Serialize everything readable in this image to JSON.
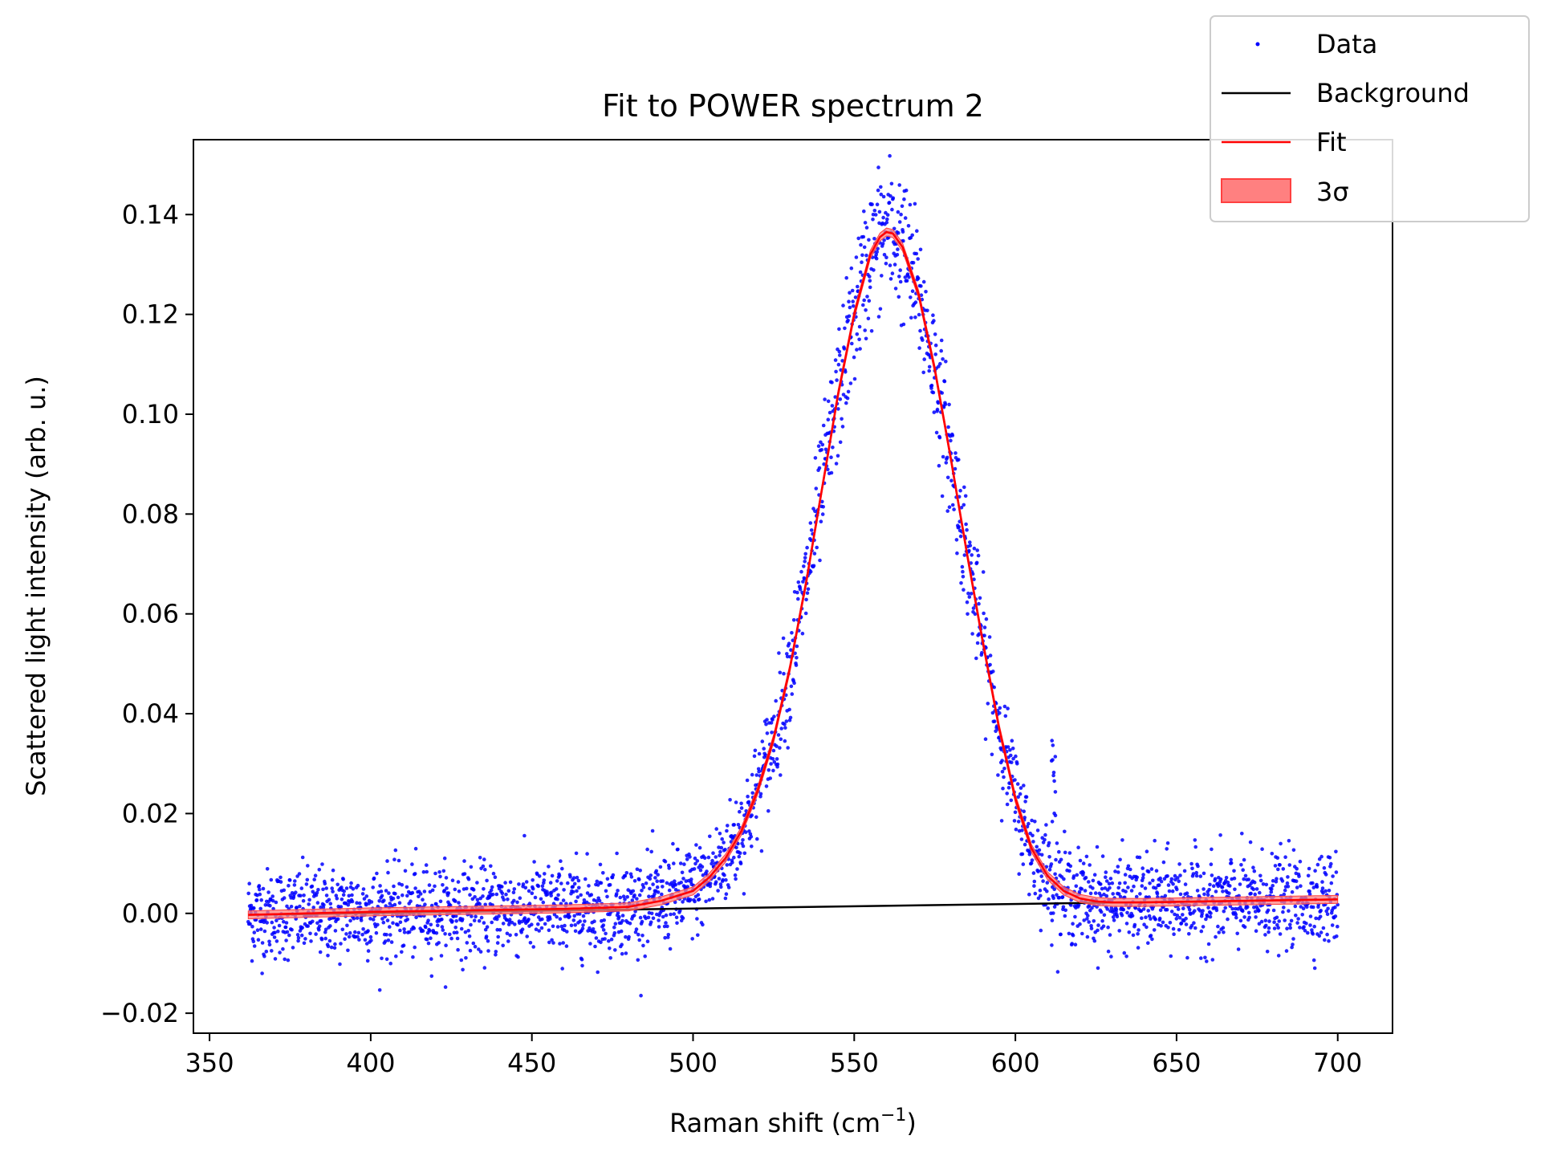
{
  "chart_data": {
    "type": "scatter",
    "title": "Fit to POWER spectrum 2",
    "xlabel": "Raman shift (cm",
    "xlabel_sup": "−1",
    "xlabel_close": ")",
    "ylabel": "Scattered light intensity (arb. u.)",
    "xlim": [
      345,
      717
    ],
    "ylim": [
      -0.024,
      0.155
    ],
    "xticks": [
      350,
      400,
      450,
      500,
      550,
      600,
      650,
      700
    ],
    "xtick_labels": [
      "350",
      "400",
      "450",
      "500",
      "550",
      "600",
      "650",
      "700"
    ],
    "yticks": [
      -0.02,
      0.0,
      0.02,
      0.04,
      0.06,
      0.08,
      0.1,
      0.12,
      0.14
    ],
    "ytick_labels": [
      "−0.02",
      "0.00",
      "0.02",
      "0.04",
      "0.06",
      "0.08",
      "0.10",
      "0.12",
      "0.14"
    ],
    "legend_position": "top-right",
    "legend": [
      {
        "label": "Data",
        "marker": "dot",
        "color": "#0000ff"
      },
      {
        "label": "Background",
        "marker": "line",
        "color": "#000000"
      },
      {
        "label": "Fit",
        "marker": "line",
        "color": "#ff0000"
      },
      {
        "label": "3σ",
        "marker": "patch",
        "color": "#ff0000"
      }
    ],
    "colors": {
      "data": "#0000ff",
      "background": "#000000",
      "fit": "#ff0000",
      "band": "#ff8080"
    },
    "data_x_range": [
      362,
      700
    ],
    "background_line": {
      "x": [
        362,
        700
      ],
      "y": [
        -0.0003,
        0.0028
      ]
    },
    "fit_curve": {
      "x": [
        362,
        380,
        400,
        420,
        440,
        460,
        480,
        490,
        500,
        505,
        510,
        515,
        520,
        525,
        530,
        535,
        540,
        545,
        550,
        555,
        558,
        560,
        562,
        565,
        570,
        575,
        580,
        585,
        590,
        595,
        600,
        605,
        610,
        615,
        620,
        625,
        630,
        640,
        650,
        670,
        700
      ],
      "y": [
        -0.0003,
        0.0,
        0.0003,
        0.0005,
        0.0007,
        0.0009,
        0.0013,
        0.0025,
        0.0045,
        0.0072,
        0.011,
        0.0165,
        0.0245,
        0.035,
        0.049,
        0.066,
        0.085,
        0.104,
        0.12,
        0.132,
        0.1355,
        0.1365,
        0.1362,
        0.1335,
        0.124,
        0.109,
        0.091,
        0.072,
        0.054,
        0.037,
        0.023,
        0.013,
        0.0075,
        0.0045,
        0.003,
        0.0024,
        0.0022,
        0.0022,
        0.0023,
        0.0025,
        0.0028
      ]
    },
    "band_halfwidth": 0.0008,
    "data_noise_sd": 0.0045,
    "data_points": 2900,
    "spike": {
      "x": 611,
      "y": 0.04
    }
  }
}
